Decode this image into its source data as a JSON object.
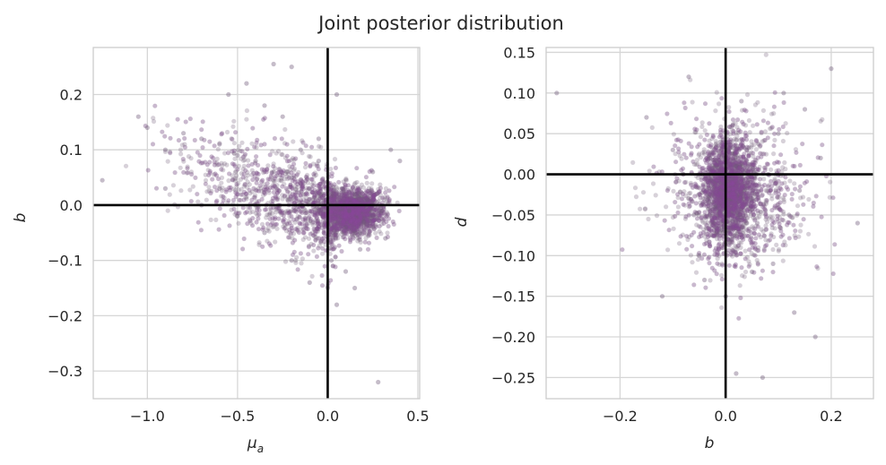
{
  "figure": {
    "title": "Joint posterior distribution"
  },
  "colors": {
    "point": "#8a4a9a",
    "point_outer": "#6f5878",
    "grid": "#d6d6d6",
    "spine": "#cccccc",
    "reference": "#000000"
  },
  "chart_data": [
    {
      "type": "scatter",
      "xlabel": "μa",
      "xlabel_main": "μ",
      "xlabel_sub": "a",
      "ylabel": "b",
      "xlim": [
        -1.3,
        0.51
      ],
      "ylim": [
        -0.35,
        0.285
      ],
      "xticks": [
        -1.0,
        -0.5,
        0.0,
        0.5
      ],
      "xtick_labels": [
        "−1.0",
        "−0.5",
        "0.0",
        "0.5"
      ],
      "yticks": [
        -0.3,
        -0.2,
        -0.1,
        0.0,
        0.1,
        0.2
      ],
      "ytick_labels": [
        "−0.3",
        "−0.2",
        "−0.1",
        "0.0",
        "0.1",
        "0.2"
      ],
      "reference_lines": {
        "x": 0.0,
        "y": 0.0
      },
      "grid": true,
      "series": [
        {
          "points": [
            [
              0.12,
              -0.01
            ],
            [
              0.2,
              -0.03
            ],
            [
              0.05,
              0.0
            ],
            [
              0.15,
              0.02
            ],
            [
              0.25,
              -0.02
            ],
            [
              0.1,
              -0.04
            ],
            [
              0.3,
              -0.01
            ],
            [
              0.08,
              0.03
            ],
            [
              0.18,
              -0.05
            ],
            [
              0.22,
              0.01
            ],
            [
              -0.1,
              0.03
            ],
            [
              -0.2,
              0.05
            ],
            [
              -0.3,
              0.06
            ],
            [
              -0.4,
              0.08
            ],
            [
              -0.5,
              0.09
            ],
            [
              -0.6,
              0.11
            ],
            [
              -0.7,
              0.12
            ],
            [
              -0.8,
              0.13
            ],
            [
              -0.9,
              0.1
            ],
            [
              -1.0,
              0.14
            ],
            [
              -0.55,
              0.2
            ],
            [
              -0.45,
              0.22
            ],
            [
              -0.35,
              0.18
            ],
            [
              -0.25,
              0.16
            ],
            [
              -0.15,
              0.1
            ],
            [
              -0.05,
              0.08
            ],
            [
              0.02,
              -0.1
            ],
            [
              0.1,
              -0.12
            ],
            [
              0.0,
              -0.15
            ],
            [
              0.05,
              -0.18
            ],
            [
              -0.2,
              -0.1
            ],
            [
              -0.35,
              -0.05
            ],
            [
              -0.5,
              -0.02
            ],
            [
              -0.7,
              0.0
            ],
            [
              -0.9,
              0.03
            ],
            [
              -1.25,
              0.045
            ],
            [
              -1.05,
              0.16
            ],
            [
              -0.3,
              0.255
            ],
            [
              -0.2,
              0.25
            ],
            [
              0.05,
              0.2
            ],
            [
              0.28,
              -0.32
            ],
            [
              0.35,
              0.1
            ],
            [
              0.4,
              0.08
            ],
            [
              -0.1,
              -0.14
            ],
            [
              0.15,
              -0.15
            ],
            [
              0.32,
              -0.06
            ],
            [
              0.25,
              0.06
            ],
            [
              0.18,
              -0.08
            ],
            [
              -0.05,
              0.12
            ],
            [
              -0.6,
              0.03
            ]
          ]
        }
      ]
    },
    {
      "type": "scatter",
      "xlabel": "b",
      "ylabel": "d",
      "xlim": [
        -0.34,
        0.28
      ],
      "ylim": [
        -0.276,
        0.156
      ],
      "xticks": [
        -0.2,
        0.0,
        0.2
      ],
      "xtick_labels": [
        "−0.2",
        "0.0",
        "0.2"
      ],
      "yticks": [
        -0.25,
        -0.2,
        -0.15,
        -0.1,
        -0.05,
        0.0,
        0.05,
        0.1,
        0.15
      ],
      "ytick_labels": [
        "−0.25",
        "−0.20",
        "−0.15",
        "−0.10",
        "−0.05",
        "0.00",
        "0.05",
        "0.10",
        "0.15"
      ],
      "reference_lines": {
        "x": 0.0,
        "y": 0.0
      },
      "grid": true,
      "series": [
        {
          "points": [
            [
              0.0,
              -0.02
            ],
            [
              0.02,
              0.01
            ],
            [
              -0.02,
              -0.04
            ],
            [
              0.05,
              -0.03
            ],
            [
              -0.03,
              0.02
            ],
            [
              0.01,
              -0.08
            ],
            [
              0.04,
              0.03
            ],
            [
              -0.01,
              0.04
            ],
            [
              0.06,
              -0.06
            ],
            [
              0.08,
              0.0
            ],
            [
              0.1,
              0.05
            ],
            [
              0.12,
              -0.05
            ],
            [
              0.15,
              0.08
            ],
            [
              -0.05,
              -0.1
            ],
            [
              -0.08,
              0.0
            ],
            [
              0.0,
              -0.15
            ],
            [
              0.05,
              -0.12
            ],
            [
              -0.04,
              -0.13
            ],
            [
              0.03,
              0.09
            ],
            [
              0.09,
              -0.11
            ],
            [
              -0.32,
              0.1
            ],
            [
              0.25,
              -0.06
            ],
            [
              0.2,
              0.13
            ],
            [
              0.02,
              -0.245
            ],
            [
              0.07,
              -0.25
            ],
            [
              -0.15,
              0.07
            ],
            [
              -0.12,
              -0.15
            ],
            [
              0.17,
              -0.2
            ],
            [
              0.13,
              -0.17
            ],
            [
              -0.07,
              0.12
            ],
            [
              0.11,
              0.1
            ],
            [
              0.18,
              0.02
            ],
            [
              -0.1,
              0.03
            ],
            [
              -0.06,
              -0.05
            ],
            [
              0.14,
              -0.02
            ]
          ]
        }
      ]
    }
  ]
}
